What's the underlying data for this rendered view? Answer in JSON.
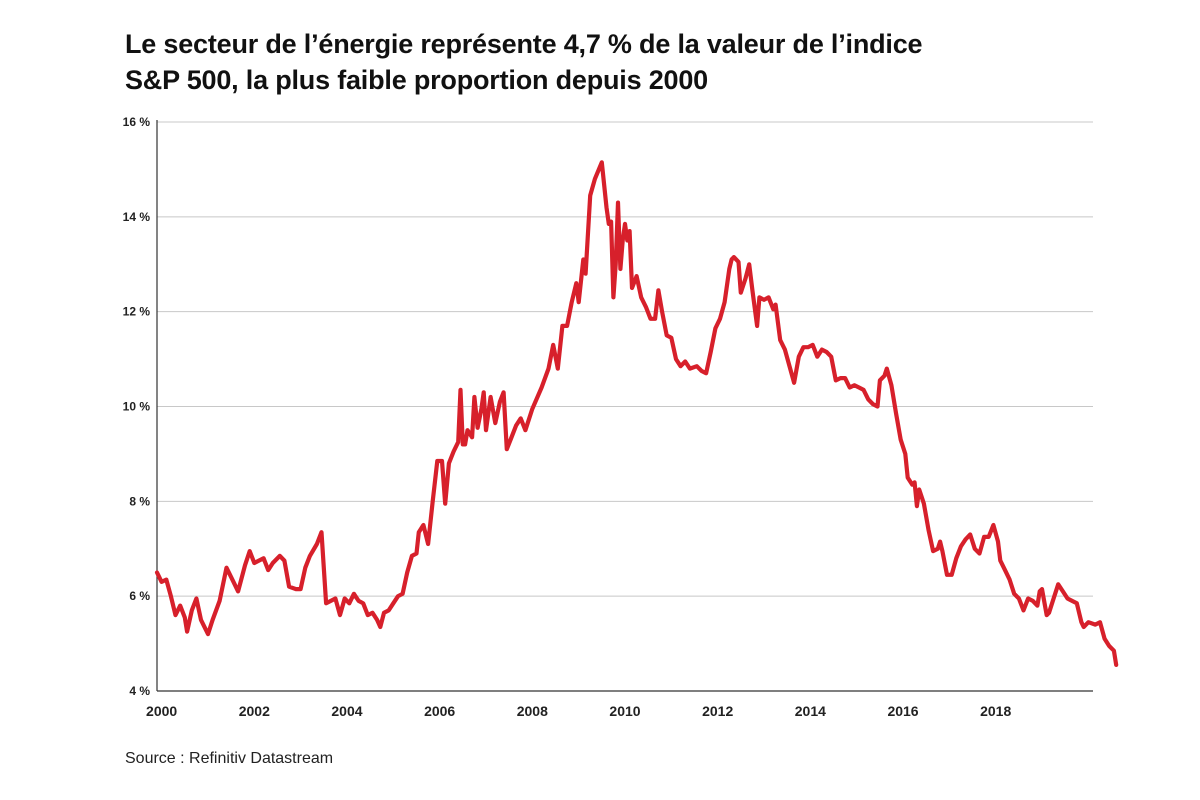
{
  "chart_data": {
    "type": "line",
    "title_line1": "Le secteur de l’énergie représente 4,7 % de la valeur de l’indice",
    "title_line2": "S&P 500, la plus faible proportion depuis 2000",
    "ylim": [
      4,
      16
    ],
    "xlim": [
      1999.9,
      2020.1
    ],
    "y_ticks": [
      4,
      6,
      8,
      10,
      12,
      14,
      16
    ],
    "y_tick_labels": [
      "4 %",
      "6 %",
      "8 %",
      "10 %",
      "12 %",
      "14 %",
      "16 %"
    ],
    "x_ticks": [
      2000,
      2002,
      2004,
      2006,
      2008,
      2010,
      2012,
      2014,
      2016,
      2018
    ],
    "x_tick_labels": [
      "2000",
      "2002",
      "2004",
      "2006",
      "2008",
      "2010",
      "2012",
      "2014",
      "2016",
      "2018"
    ],
    "grid": true,
    "color": "#d7202b",
    "series": [
      {
        "name": "",
        "points": [
          [
            1999.9,
            6.5
          ],
          [
            2000.0,
            6.3
          ],
          [
            2000.1,
            6.35
          ],
          [
            2000.2,
            6.0
          ],
          [
            2000.3,
            5.6
          ],
          [
            2000.4,
            5.8
          ],
          [
            2000.5,
            5.55
          ],
          [
            2000.55,
            5.25
          ],
          [
            2000.65,
            5.7
          ],
          [
            2000.75,
            5.95
          ],
          [
            2000.85,
            5.5
          ],
          [
            2001.0,
            5.2
          ],
          [
            2001.1,
            5.5
          ],
          [
            2001.25,
            5.9
          ],
          [
            2001.4,
            6.6
          ],
          [
            2001.55,
            6.3
          ],
          [
            2001.65,
            6.1
          ],
          [
            2001.8,
            6.65
          ],
          [
            2001.9,
            6.95
          ],
          [
            2002.0,
            6.7
          ],
          [
            2002.1,
            6.75
          ],
          [
            2002.2,
            6.8
          ],
          [
            2002.3,
            6.55
          ],
          [
            2002.4,
            6.7
          ],
          [
            2002.55,
            6.85
          ],
          [
            2002.65,
            6.75
          ],
          [
            2002.75,
            6.2
          ],
          [
            2002.9,
            6.15
          ],
          [
            2003.0,
            6.15
          ],
          [
            2003.1,
            6.6
          ],
          [
            2003.2,
            6.85
          ],
          [
            2003.35,
            7.1
          ],
          [
            2003.45,
            7.35
          ],
          [
            2003.55,
            5.85
          ],
          [
            2003.65,
            5.9
          ],
          [
            2003.75,
            5.95
          ],
          [
            2003.85,
            5.6
          ],
          [
            2003.95,
            5.95
          ],
          [
            2004.05,
            5.85
          ],
          [
            2004.15,
            6.05
          ],
          [
            2004.25,
            5.9
          ],
          [
            2004.35,
            5.85
          ],
          [
            2004.45,
            5.6
          ],
          [
            2004.55,
            5.65
          ],
          [
            2004.65,
            5.5
          ],
          [
            2004.72,
            5.35
          ],
          [
            2004.8,
            5.65
          ],
          [
            2004.9,
            5.7
          ],
          [
            2005.0,
            5.85
          ],
          [
            2005.1,
            6.0
          ],
          [
            2005.2,
            6.05
          ],
          [
            2005.3,
            6.5
          ],
          [
            2005.4,
            6.85
          ],
          [
            2005.5,
            6.9
          ],
          [
            2005.55,
            7.35
          ],
          [
            2005.65,
            7.5
          ],
          [
            2005.75,
            7.1
          ],
          [
            2005.85,
            8.0
          ],
          [
            2005.95,
            8.85
          ],
          [
            2006.05,
            8.85
          ],
          [
            2006.12,
            7.95
          ],
          [
            2006.2,
            8.8
          ],
          [
            2006.3,
            9.05
          ],
          [
            2006.4,
            9.25
          ],
          [
            2006.45,
            10.35
          ],
          [
            2006.5,
            9.2
          ],
          [
            2006.55,
            9.2
          ],
          [
            2006.6,
            9.5
          ],
          [
            2006.7,
            9.35
          ],
          [
            2006.75,
            10.2
          ],
          [
            2006.82,
            9.55
          ],
          [
            2006.9,
            9.95
          ],
          [
            2006.95,
            10.3
          ],
          [
            2007.0,
            9.5
          ],
          [
            2007.1,
            10.2
          ],
          [
            2007.2,
            9.65
          ],
          [
            2007.3,
            10.1
          ],
          [
            2007.38,
            10.3
          ],
          [
            2007.45,
            9.1
          ],
          [
            2007.55,
            9.35
          ],
          [
            2007.65,
            9.6
          ],
          [
            2007.75,
            9.75
          ],
          [
            2007.85,
            9.5
          ],
          [
            2008.0,
            9.95
          ],
          [
            2008.2,
            10.4
          ],
          [
            2008.35,
            10.8
          ],
          [
            2008.45,
            11.3
          ],
          [
            2008.55,
            10.8
          ],
          [
            2008.65,
            11.7
          ],
          [
            2008.75,
            11.7
          ],
          [
            2008.85,
            12.2
          ],
          [
            2008.95,
            12.6
          ],
          [
            2009.0,
            12.2
          ],
          [
            2009.1,
            13.1
          ],
          [
            2009.15,
            12.8
          ],
          [
            2009.25,
            14.45
          ],
          [
            2009.35,
            14.8
          ],
          [
            2009.5,
            15.15
          ],
          [
            2009.6,
            14.2
          ],
          [
            2009.65,
            13.85
          ],
          [
            2009.7,
            13.9
          ],
          [
            2009.75,
            12.3
          ],
          [
            2009.8,
            13.0
          ],
          [
            2009.85,
            14.3
          ],
          [
            2009.9,
            12.9
          ],
          [
            2009.95,
            13.5
          ],
          [
            2010.0,
            13.85
          ],
          [
            2010.05,
            13.5
          ],
          [
            2010.1,
            13.7
          ],
          [
            2010.15,
            12.5
          ],
          [
            2010.25,
            12.75
          ],
          [
            2010.35,
            12.3
          ],
          [
            2010.45,
            12.1
          ],
          [
            2010.55,
            11.85
          ],
          [
            2010.65,
            11.85
          ],
          [
            2010.72,
            12.45
          ],
          [
            2010.8,
            12.0
          ],
          [
            2010.9,
            11.5
          ],
          [
            2011.0,
            11.45
          ],
          [
            2011.1,
            11.0
          ],
          [
            2011.2,
            10.85
          ],
          [
            2011.3,
            10.95
          ],
          [
            2011.4,
            10.8
          ],
          [
            2011.55,
            10.85
          ],
          [
            2011.65,
            10.75
          ],
          [
            2011.75,
            10.7
          ],
          [
            2011.85,
            11.15
          ],
          [
            2011.95,
            11.65
          ],
          [
            2012.05,
            11.85
          ],
          [
            2012.15,
            12.2
          ],
          [
            2012.25,
            12.9
          ],
          [
            2012.3,
            13.1
          ],
          [
            2012.35,
            13.15
          ],
          [
            2012.45,
            13.05
          ],
          [
            2012.5,
            12.4
          ],
          [
            2012.6,
            12.7
          ],
          [
            2012.68,
            13.0
          ],
          [
            2012.75,
            12.45
          ],
          [
            2012.85,
            11.7
          ],
          [
            2012.9,
            12.3
          ],
          [
            2013.0,
            12.25
          ],
          [
            2013.1,
            12.3
          ],
          [
            2013.2,
            12.05
          ],
          [
            2013.25,
            12.15
          ],
          [
            2013.35,
            11.4
          ],
          [
            2013.45,
            11.2
          ],
          [
            2013.55,
            10.85
          ],
          [
            2013.65,
            10.5
          ],
          [
            2013.75,
            11.05
          ],
          [
            2013.85,
            11.25
          ],
          [
            2013.95,
            11.25
          ],
          [
            2014.05,
            11.3
          ],
          [
            2014.15,
            11.05
          ],
          [
            2014.25,
            11.2
          ],
          [
            2014.35,
            11.15
          ],
          [
            2014.45,
            11.05
          ],
          [
            2014.55,
            10.55
          ],
          [
            2014.65,
            10.6
          ],
          [
            2014.75,
            10.6
          ],
          [
            2014.85,
            10.4
          ],
          [
            2014.95,
            10.45
          ],
          [
            2015.05,
            10.4
          ],
          [
            2015.15,
            10.35
          ],
          [
            2015.25,
            10.15
          ],
          [
            2015.35,
            10.05
          ],
          [
            2015.45,
            10.0
          ],
          [
            2015.5,
            10.55
          ],
          [
            2015.6,
            10.65
          ],
          [
            2015.65,
            10.8
          ],
          [
            2015.75,
            10.45
          ],
          [
            2015.85,
            9.85
          ],
          [
            2015.95,
            9.3
          ],
          [
            2016.05,
            9.0
          ],
          [
            2016.1,
            8.5
          ],
          [
            2016.2,
            8.35
          ],
          [
            2016.25,
            8.4
          ],
          [
            2016.3,
            7.9
          ],
          [
            2016.35,
            8.25
          ],
          [
            2016.45,
            7.95
          ],
          [
            2016.55,
            7.4
          ],
          [
            2016.65,
            6.95
          ],
          [
            2016.75,
            7.0
          ],
          [
            2016.8,
            7.15
          ],
          [
            2016.85,
            6.95
          ],
          [
            2016.95,
            6.45
          ],
          [
            2017.05,
            6.45
          ],
          [
            2017.15,
            6.8
          ],
          [
            2017.25,
            7.05
          ],
          [
            2017.35,
            7.2
          ],
          [
            2017.45,
            7.3
          ],
          [
            2017.55,
            7.0
          ],
          [
            2017.65,
            6.9
          ],
          [
            2017.75,
            7.25
          ],
          [
            2017.85,
            7.25
          ],
          [
            2017.95,
            7.5
          ],
          [
            2018.05,
            7.15
          ],
          [
            2018.1,
            6.75
          ],
          [
            2018.2,
            6.55
          ],
          [
            2018.3,
            6.35
          ],
          [
            2018.4,
            6.05
          ],
          [
            2018.5,
            5.95
          ],
          [
            2018.6,
            5.7
          ],
          [
            2018.7,
            5.95
          ],
          [
            2018.8,
            5.9
          ],
          [
            2018.9,
            5.8
          ],
          [
            2018.95,
            6.1
          ],
          [
            2019.0,
            6.15
          ],
          [
            2019.1,
            5.6
          ],
          [
            2019.15,
            5.65
          ],
          [
            2019.25,
            5.95
          ],
          [
            2019.35,
            6.25
          ],
          [
            2019.45,
            6.1
          ],
          [
            2019.55,
            5.95
          ],
          [
            2019.65,
            5.9
          ],
          [
            2019.75,
            5.85
          ],
          [
            2019.85,
            5.45
          ],
          [
            2019.9,
            5.35
          ],
          [
            2020.0,
            5.45
          ],
          [
            2020.15,
            5.4
          ],
          [
            2020.25,
            5.45
          ],
          [
            2020.35,
            5.1
          ],
          [
            2020.45,
            4.95
          ],
          [
            2020.55,
            4.85
          ],
          [
            2020.6,
            4.55
          ]
        ]
      }
    ]
  },
  "source": "Source : Refinitiv Datastream"
}
